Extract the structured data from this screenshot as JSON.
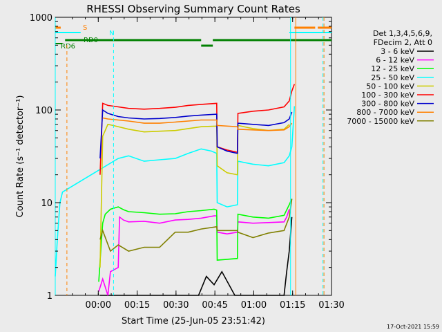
{
  "chart_data": {
    "type": "line",
    "title": "RHESSI Observing Summary Count Rates",
    "xlabel": "Start Time (25-Jun-05 23:51:42)",
    "ylabel": "Count Rate (s⁻¹ detector⁻¹)",
    "y_scale": "log",
    "ylim": [
      1,
      1000
    ],
    "xlim_minutes": [
      -8.3,
      98.3
    ],
    "x_ticks": [
      {
        "value": 8.3,
        "label": "00:00"
      },
      {
        "value": 23.3,
        "label": "00:15"
      },
      {
        "value": 38.3,
        "label": "00:30"
      },
      {
        "value": 53.3,
        "label": "00:45"
      },
      {
        "value": 68.3,
        "label": "01:00"
      },
      {
        "value": 83.3,
        "label": "01:15"
      },
      {
        "value": 98.3,
        "label": "01:30"
      }
    ],
    "y_ticks": [
      {
        "value": 1,
        "label": "1"
      },
      {
        "value": 10,
        "label": "10"
      },
      {
        "value": 100,
        "label": "100"
      },
      {
        "value": 1000,
        "label": "1000"
      }
    ],
    "legend_header": [
      "Det 1,3,4,5,6,9,",
      "FDecim 2, Att 0"
    ],
    "legend_position": "right",
    "series": [
      {
        "name": "3 - 6 keV",
        "color": "#000000",
        "points": [
          [
            9,
            1
          ],
          [
            12,
            1
          ],
          [
            47,
            1
          ],
          [
            50,
            1.6
          ],
          [
            53,
            1.3
          ],
          [
            56,
            1.8
          ],
          [
            61,
            1
          ],
          [
            80,
            1
          ],
          [
            81,
            1.8
          ],
          [
            82,
            3
          ],
          [
            83,
            7
          ]
        ]
      },
      {
        "name": "6 - 12 keV",
        "color": "#ff00ff",
        "points": [
          [
            8.5,
            1.1
          ],
          [
            10,
            1.5
          ],
          [
            12,
            1
          ],
          [
            13,
            1.8
          ],
          [
            16,
            2
          ],
          [
            16.5,
            7
          ],
          [
            18,
            6.5
          ],
          [
            20,
            6.2
          ],
          [
            26,
            6.3
          ],
          [
            32,
            6
          ],
          [
            38,
            6.5
          ],
          [
            43,
            6.6
          ],
          [
            48,
            6.8
          ],
          [
            53,
            7.2
          ],
          [
            54,
            7.2
          ],
          [
            54.2,
            4.8
          ],
          [
            58,
            4.6
          ],
          [
            62,
            4.8
          ],
          [
            62.2,
            6.2
          ],
          [
            68,
            6
          ],
          [
            74,
            6.1
          ],
          [
            80,
            6.2
          ],
          [
            81,
            7
          ],
          [
            82,
            8.5
          ]
        ]
      },
      {
        "name": "12 - 25 keV",
        "color": "#00ff00",
        "points": [
          [
            8.5,
            1.4
          ],
          [
            9.5,
            3.8
          ],
          [
            10,
            6
          ],
          [
            11,
            7.5
          ],
          [
            13,
            8.5
          ],
          [
            16,
            9
          ],
          [
            18,
            8.4
          ],
          [
            20,
            8
          ],
          [
            26,
            7.8
          ],
          [
            32,
            7.5
          ],
          [
            38,
            7.6
          ],
          [
            43,
            8
          ],
          [
            48,
            8.2
          ],
          [
            53,
            8.5
          ],
          [
            54,
            8.3
          ],
          [
            54.2,
            2.4
          ],
          [
            62,
            2.5
          ],
          [
            62.2,
            7.5
          ],
          [
            68,
            7
          ],
          [
            74,
            6.8
          ],
          [
            80,
            7.3
          ],
          [
            82,
            9.5
          ],
          [
            83,
            11
          ]
        ]
      },
      {
        "name": "25 - 50 keV",
        "color": "#00ffff",
        "points": [
          [
            -8.3,
            1.6
          ],
          [
            -7.5,
            4
          ],
          [
            -6.5,
            10
          ],
          [
            -5.5,
            13
          ],
          [
            16,
            30
          ],
          [
            20,
            32
          ],
          [
            26,
            28
          ],
          [
            32,
            29
          ],
          [
            38,
            30
          ],
          [
            43,
            34
          ],
          [
            48,
            38
          ],
          [
            52,
            36
          ],
          [
            54,
            34
          ],
          [
            54.2,
            10
          ],
          [
            58,
            9
          ],
          [
            62,
            9.5
          ],
          [
            62.2,
            28
          ],
          [
            68,
            26
          ],
          [
            74,
            25
          ],
          [
            80,
            27
          ],
          [
            82,
            32
          ],
          [
            83,
            40
          ],
          [
            84,
            110
          ]
        ]
      },
      {
        "name": "50 - 100 keV",
        "color": "#cccc00",
        "points": [
          [
            9,
            2
          ],
          [
            10,
            52
          ],
          [
            12,
            70
          ],
          [
            14,
            68
          ],
          [
            20,
            62
          ],
          [
            26,
            58
          ],
          [
            32,
            59
          ],
          [
            38,
            60
          ],
          [
            43,
            63
          ],
          [
            48,
            66
          ],
          [
            54,
            67
          ],
          [
            54.2,
            25
          ],
          [
            58,
            21
          ],
          [
            62,
            20
          ],
          [
            62.2,
            68
          ],
          [
            68,
            63
          ],
          [
            74,
            60
          ],
          [
            80,
            62
          ],
          [
            82,
            70
          ]
        ]
      },
      {
        "name": "100 - 300 keV",
        "color": "#ff0000",
        "points": [
          [
            9,
            20
          ],
          [
            10,
            118
          ],
          [
            12,
            112
          ],
          [
            16,
            108
          ],
          [
            20,
            104
          ],
          [
            26,
            102
          ],
          [
            32,
            104
          ],
          [
            38,
            107
          ],
          [
            43,
            112
          ],
          [
            48,
            115
          ],
          [
            54,
            118
          ],
          [
            54.2,
            40
          ],
          [
            58,
            37
          ],
          [
            62,
            35
          ],
          [
            62.2,
            92
          ],
          [
            68,
            97
          ],
          [
            74,
            100
          ],
          [
            80,
            108
          ],
          [
            82,
            125
          ],
          [
            83,
            160
          ],
          [
            84,
            190
          ]
        ]
      },
      {
        "name": "300 - 800 keV",
        "color": "#0000cc",
        "points": [
          [
            9,
            30
          ],
          [
            10,
            100
          ],
          [
            12,
            92
          ],
          [
            16,
            85
          ],
          [
            20,
            82
          ],
          [
            26,
            80
          ],
          [
            32,
            81
          ],
          [
            38,
            83
          ],
          [
            43,
            86
          ],
          [
            48,
            88
          ],
          [
            54,
            90
          ],
          [
            54.2,
            40
          ],
          [
            58,
            36
          ],
          [
            62,
            34
          ],
          [
            62.2,
            72
          ],
          [
            68,
            70
          ],
          [
            74,
            68
          ],
          [
            80,
            73
          ],
          [
            82,
            80
          ],
          [
            83,
            95
          ]
        ]
      },
      {
        "name": "800 - 7000 keV",
        "color": "#ff8000",
        "points": [
          [
            10,
            82
          ],
          [
            12,
            80
          ],
          [
            16,
            78
          ],
          [
            20,
            76
          ],
          [
            26,
            72
          ],
          [
            32,
            72
          ],
          [
            38,
            74
          ],
          [
            43,
            76
          ],
          [
            48,
            78
          ],
          [
            54,
            78
          ],
          [
            54.2,
            68
          ],
          [
            62,
            66
          ],
          [
            62.2,
            62
          ],
          [
            68,
            61
          ],
          [
            74,
            60
          ],
          [
            80,
            61
          ],
          [
            82,
            66
          ],
          [
            83,
            72
          ]
        ]
      },
      {
        "name": "7000 - 15000 keV",
        "color": "#808000",
        "points": [
          [
            9,
            4
          ],
          [
            10,
            5
          ],
          [
            13,
            3
          ],
          [
            16,
            3.5
          ],
          [
            20,
            3
          ],
          [
            26,
            3.3
          ],
          [
            32,
            3.3
          ],
          [
            38,
            4.8
          ],
          [
            43,
            4.8
          ],
          [
            48,
            5.2
          ],
          [
            54,
            5.5
          ],
          [
            54.2,
            5
          ],
          [
            62,
            5
          ],
          [
            62.2,
            4.8
          ],
          [
            68,
            4.2
          ],
          [
            74,
            4.7
          ],
          [
            80,
            5
          ],
          [
            82,
            7
          ],
          [
            83,
            11
          ]
        ]
      }
    ],
    "flag_labels": [
      {
        "label": "S",
        "color": "#ff8000"
      },
      {
        "label": "N",
        "color": "#00ffff"
      },
      {
        "label": "RD6",
        "color": "#008000"
      },
      {
        "label": "RD0",
        "color": "#008000"
      }
    ],
    "footer_date": "17-Oct-2021 15:59"
  }
}
